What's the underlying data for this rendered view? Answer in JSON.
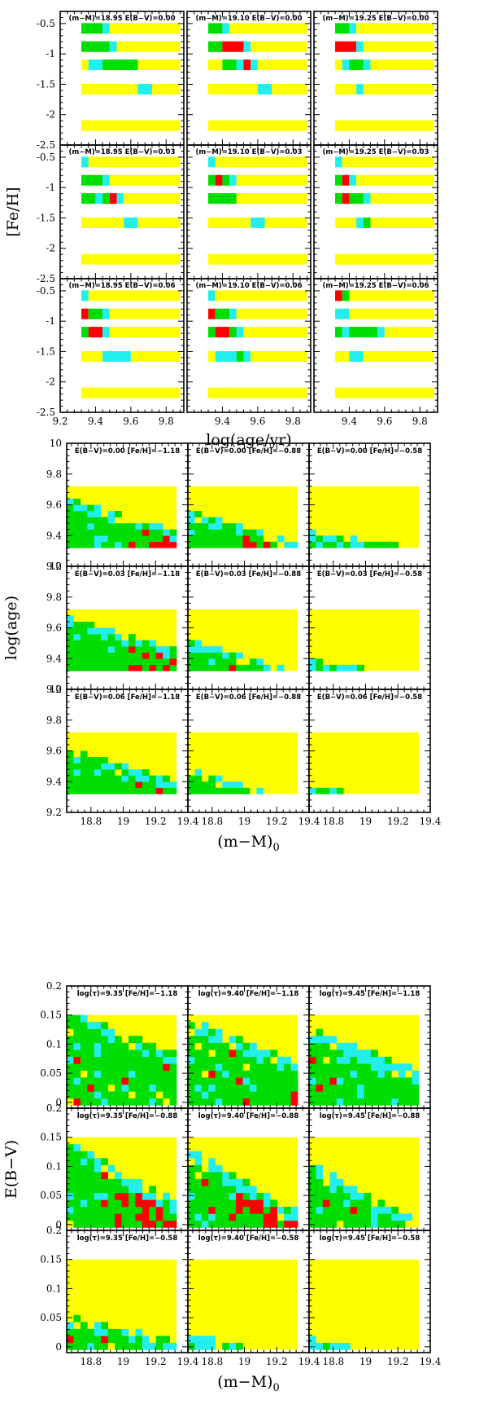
{
  "colors": {
    "red": "#ff0000",
    "green": "#00dd00",
    "cyan": "#22eeee",
    "yellow": "#ffff00"
  },
  "chart_data": [
    {
      "type": "heatmap",
      "xlabel": "log(age/yr)",
      "ylabel": "[Fe/H]",
      "xlim": [
        9.2,
        9.9
      ],
      "ylim": [
        -2.5,
        -0.3
      ],
      "xticks": [
        "9.2",
        "9.4",
        "9.6",
        "9.8"
      ],
      "yticks": [
        "-0.5",
        "-1",
        "-1.5",
        "-2",
        "-2.5"
      ],
      "row_values": [
        -0.58,
        -0.88,
        -1.18,
        -1.58,
        -2.18
      ],
      "panels": [
        [
          {
            "title": "(m−M)=18.95 E(B−V)=0.00",
            "rows": [
              [
                [
                  9.32,
                  9.44,
                  "g"
                ],
                [
                  9.44,
                  9.48,
                  "c"
                ],
                [
                  9.48,
                  9.88,
                  "y"
                ]
              ],
              [
                [
                  9.32,
                  9.48,
                  "g"
                ],
                [
                  9.48,
                  9.52,
                  "c"
                ],
                [
                  9.52,
                  9.88,
                  "y"
                ]
              ],
              [
                [
                  9.32,
                  9.36,
                  "y"
                ],
                [
                  9.36,
                  9.44,
                  "c"
                ],
                [
                  9.44,
                  9.64,
                  "g"
                ],
                [
                  9.64,
                  9.88,
                  "y"
                ]
              ],
              [
                [
                  9.32,
                  9.64,
                  "y"
                ],
                [
                  9.64,
                  9.72,
                  "c"
                ],
                [
                  9.72,
                  9.88,
                  "y"
                ]
              ],
              [
                [
                  9.32,
                  9.88,
                  "y"
                ]
              ]
            ]
          },
          {
            "title": "(m−M)=19.10 E(B−V)=0.00",
            "rows": [
              [
                [
                  9.32,
                  9.4,
                  "g"
                ],
                [
                  9.4,
                  9.44,
                  "c"
                ],
                [
                  9.44,
                  9.88,
                  "y"
                ]
              ],
              [
                [
                  9.32,
                  9.4,
                  "g"
                ],
                [
                  9.4,
                  9.52,
                  "r"
                ],
                [
                  9.52,
                  9.56,
                  "c"
                ],
                [
                  9.56,
                  9.88,
                  "y"
                ]
              ],
              [
                [
                  9.32,
                  9.4,
                  "y"
                ],
                [
                  9.4,
                  9.48,
                  "g"
                ],
                [
                  9.48,
                  9.52,
                  "c"
                ],
                [
                  9.52,
                  9.56,
                  "r"
                ],
                [
                  9.56,
                  9.6,
                  "c"
                ],
                [
                  9.6,
                  9.88,
                  "y"
                ]
              ],
              [
                [
                  9.32,
                  9.6,
                  "y"
                ],
                [
                  9.6,
                  9.68,
                  "c"
                ],
                [
                  9.68,
                  9.88,
                  "y"
                ]
              ],
              [
                [
                  9.32,
                  9.88,
                  "y"
                ]
              ]
            ]
          },
          {
            "title": "(m−M)=19.25 E(B−V)=0.00",
            "rows": [
              [
                [
                  9.32,
                  9.4,
                  "g"
                ],
                [
                  9.4,
                  9.44,
                  "c"
                ],
                [
                  9.44,
                  9.88,
                  "y"
                ]
              ],
              [
                [
                  9.32,
                  9.44,
                  "r"
                ],
                [
                  9.44,
                  9.48,
                  "c"
                ],
                [
                  9.48,
                  9.88,
                  "y"
                ]
              ],
              [
                [
                  9.32,
                  9.36,
                  "y"
                ],
                [
                  9.36,
                  9.4,
                  "c"
                ],
                [
                  9.4,
                  9.48,
                  "g"
                ],
                [
                  9.48,
                  9.52,
                  "c"
                ],
                [
                  9.52,
                  9.88,
                  "y"
                ]
              ],
              [
                [
                  9.32,
                  9.44,
                  "y"
                ],
                [
                  9.44,
                  9.48,
                  "c"
                ],
                [
                  9.48,
                  9.88,
                  "y"
                ]
              ],
              [
                [
                  9.32,
                  9.88,
                  "y"
                ]
              ]
            ]
          }
        ],
        [
          {
            "title": "(m−M)=18.95 E(B−V)=0.03",
            "rows": [
              [
                [
                  9.32,
                  9.36,
                  "c"
                ],
                [
                  9.36,
                  9.88,
                  "y"
                ]
              ],
              [
                [
                  9.32,
                  9.44,
                  "g"
                ],
                [
                  9.44,
                  9.48,
                  "c"
                ],
                [
                  9.48,
                  9.88,
                  "y"
                ]
              ],
              [
                [
                  9.32,
                  9.4,
                  "g"
                ],
                [
                  9.4,
                  9.44,
                  "c"
                ],
                [
                  9.44,
                  9.48,
                  "g"
                ],
                [
                  9.48,
                  9.52,
                  "r"
                ],
                [
                  9.52,
                  9.56,
                  "c"
                ],
                [
                  9.56,
                  9.88,
                  "y"
                ]
              ],
              [
                [
                  9.32,
                  9.56,
                  "y"
                ],
                [
                  9.56,
                  9.64,
                  "c"
                ],
                [
                  9.64,
                  9.88,
                  "y"
                ]
              ],
              [
                [
                  9.32,
                  9.88,
                  "y"
                ]
              ]
            ]
          },
          {
            "title": "(m−M)=19.10 E(B−V)=0.03",
            "rows": [
              [
                [
                  9.32,
                  9.36,
                  "c"
                ],
                [
                  9.36,
                  9.88,
                  "y"
                ]
              ],
              [
                [
                  9.32,
                  9.36,
                  "g"
                ],
                [
                  9.36,
                  9.4,
                  "r"
                ],
                [
                  9.4,
                  9.44,
                  "g"
                ],
                [
                  9.44,
                  9.48,
                  "c"
                ],
                [
                  9.48,
                  9.88,
                  "y"
                ]
              ],
              [
                [
                  9.32,
                  9.48,
                  "g"
                ],
                [
                  9.48,
                  9.88,
                  "y"
                ]
              ],
              [
                [
                  9.32,
                  9.56,
                  "y"
                ],
                [
                  9.56,
                  9.64,
                  "c"
                ],
                [
                  9.64,
                  9.88,
                  "y"
                ]
              ],
              [
                [
                  9.32,
                  9.88,
                  "y"
                ]
              ]
            ]
          },
          {
            "title": "(m−M)=19.25 E(B−V)=0.03",
            "rows": [
              [
                [
                  9.32,
                  9.36,
                  "c"
                ],
                [
                  9.36,
                  9.88,
                  "y"
                ]
              ],
              [
                [
                  9.32,
                  9.36,
                  "g"
                ],
                [
                  9.36,
                  9.4,
                  "r"
                ],
                [
                  9.4,
                  9.44,
                  "c"
                ],
                [
                  9.44,
                  9.88,
                  "y"
                ]
              ],
              [
                [
                  9.32,
                  9.36,
                  "g"
                ],
                [
                  9.36,
                  9.4,
                  "r"
                ],
                [
                  9.4,
                  9.48,
                  "g"
                ],
                [
                  9.48,
                  9.52,
                  "c"
                ],
                [
                  9.52,
                  9.88,
                  "y"
                ]
              ],
              [
                [
                  9.32,
                  9.44,
                  "y"
                ],
                [
                  9.44,
                  9.48,
                  "c"
                ],
                [
                  9.48,
                  9.52,
                  "g"
                ],
                [
                  9.52,
                  9.88,
                  "y"
                ]
              ],
              [
                [
                  9.32,
                  9.88,
                  "y"
                ]
              ]
            ]
          }
        ],
        [
          {
            "title": "(m−M)=18.95 E(B−V)=0.06",
            "rows": [
              [
                [
                  9.32,
                  9.36,
                  "c"
                ],
                [
                  9.36,
                  9.88,
                  "y"
                ]
              ],
              [
                [
                  9.32,
                  9.36,
                  "r"
                ],
                [
                  9.36,
                  9.44,
                  "g"
                ],
                [
                  9.44,
                  9.48,
                  "c"
                ],
                [
                  9.48,
                  9.88,
                  "y"
                ]
              ],
              [
                [
                  9.32,
                  9.36,
                  "g"
                ],
                [
                  9.36,
                  9.44,
                  "r"
                ],
                [
                  9.44,
                  9.48,
                  "c"
                ],
                [
                  9.48,
                  9.88,
                  "y"
                ]
              ],
              [
                [
                  9.32,
                  9.44,
                  "y"
                ],
                [
                  9.44,
                  9.6,
                  "c"
                ],
                [
                  9.6,
                  9.88,
                  "y"
                ]
              ],
              [
                [
                  9.32,
                  9.88,
                  "y"
                ]
              ]
            ]
          },
          {
            "title": "(m−M)=19.10 E(B−V)=0.06",
            "rows": [
              [
                [
                  9.32,
                  9.36,
                  "c"
                ],
                [
                  9.36,
                  9.88,
                  "y"
                ]
              ],
              [
                [
                  9.32,
                  9.36,
                  "r"
                ],
                [
                  9.36,
                  9.44,
                  "g"
                ],
                [
                  9.44,
                  9.48,
                  "c"
                ],
                [
                  9.48,
                  9.88,
                  "y"
                ]
              ],
              [
                [
                  9.32,
                  9.36,
                  "g"
                ],
                [
                  9.36,
                  9.44,
                  "r"
                ],
                [
                  9.44,
                  9.48,
                  "g"
                ],
                [
                  9.48,
                  9.52,
                  "c"
                ],
                [
                  9.52,
                  9.88,
                  "y"
                ]
              ],
              [
                [
                  9.32,
                  9.36,
                  "y"
                ],
                [
                  9.36,
                  9.48,
                  "c"
                ],
                [
                  9.48,
                  9.52,
                  "g"
                ],
                [
                  9.52,
                  9.56,
                  "c"
                ],
                [
                  9.56,
                  9.88,
                  "y"
                ]
              ],
              [
                [
                  9.32,
                  9.88,
                  "y"
                ]
              ]
            ]
          },
          {
            "title": "(m−M)=19.25 E(B−V)=0.06",
            "rows": [
              [
                [
                  9.32,
                  9.36,
                  "r"
                ],
                [
                  9.36,
                  9.4,
                  "g"
                ],
                [
                  9.4,
                  9.88,
                  "y"
                ]
              ],
              [
                [
                  9.32,
                  9.4,
                  "c"
                ],
                [
                  9.4,
                  9.88,
                  "y"
                ]
              ],
              [
                [
                  9.32,
                  9.36,
                  "g"
                ],
                [
                  9.36,
                  9.4,
                  "c"
                ],
                [
                  9.4,
                  9.56,
                  "g"
                ],
                [
                  9.56,
                  9.6,
                  "c"
                ],
                [
                  9.6,
                  9.88,
                  "y"
                ]
              ],
              [
                [
                  9.32,
                  9.4,
                  "y"
                ],
                [
                  9.4,
                  9.48,
                  "c"
                ],
                [
                  9.48,
                  9.88,
                  "y"
                ]
              ],
              [
                [
                  9.32,
                  9.88,
                  "y"
                ]
              ]
            ]
          }
        ]
      ]
    },
    {
      "type": "heatmap",
      "xlabel": "(m−M)",
      "xlabel_sub": "0",
      "ylabel": "log(age)",
      "xlim": [
        18.65,
        19.4
      ],
      "ylim": [
        9.2,
        10.0
      ],
      "xticks": [
        "18.8",
        "19",
        "19.2",
        "19.4"
      ],
      "yticks": [
        "9.2",
        "9.4",
        "9.6",
        "9.8",
        "10"
      ],
      "panels": [
        [
          {
            "title": "E(B−V)=0.00 [Fe/H]=−1.18"
          },
          {
            "title": "E(B−V)=0.00 [Fe/H]=−0.88"
          },
          {
            "title": "E(B−V)=0.00 [Fe/H]=−0.58"
          }
        ],
        [
          {
            "title": "E(B−V)=0.03 [Fe/H]=−1.18"
          },
          {
            "title": "E(B−V)=0.03 [Fe/H]=−0.88"
          },
          {
            "title": "E(B−V)=0.03 [Fe/H]=−0.58"
          }
        ],
        [
          {
            "title": "E(B−V)=0.06 [Fe/H]=−1.18"
          },
          {
            "title": "E(B−V)=0.06 [Fe/H]=−0.88"
          },
          {
            "title": "E(B−V)=0.06 [Fe/H]=−0.58"
          }
        ]
      ]
    },
    {
      "type": "heatmap",
      "xlabel": "(m−M)",
      "xlabel_sub": "0",
      "ylabel": "E(B−V)",
      "xlim": [
        18.65,
        19.4
      ],
      "ylim": [
        -0.01,
        0.2
      ],
      "xticks": [
        "18.8",
        "19",
        "19.2",
        "19.4"
      ],
      "yticks": [
        "0",
        "0.05",
        "0.1",
        "0.15",
        "0.2"
      ],
      "panels": [
        [
          {
            "title": "log(τ)=9.35 [Fe/H]=−1.18"
          },
          {
            "title": "log(τ)=9.40 [Fe/H]=−1.18"
          },
          {
            "title": "log(τ)=9.45 [Fe/H]=−1.18"
          }
        ],
        [
          {
            "title": "log(τ)=9.35 [Fe/H]=−0.88"
          },
          {
            "title": "log(τ)=9.40 [Fe/H]=−0.88"
          },
          {
            "title": "log(τ)=9.45 [Fe/H]=−0.88"
          }
        ],
        [
          {
            "title": "log(τ)=9.35 [Fe/H]=−0.58"
          },
          {
            "title": "log(τ)=9.40 [Fe/H]=−0.58"
          },
          {
            "title": "log(τ)=9.45 [Fe/H]=−0.58"
          }
        ]
      ]
    }
  ]
}
